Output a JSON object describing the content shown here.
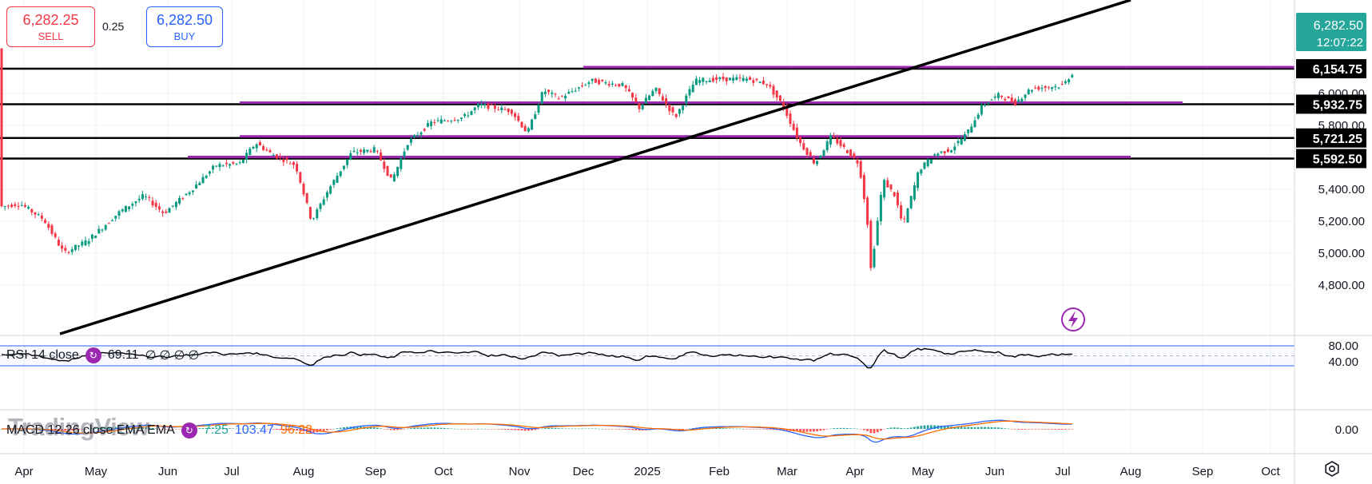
{
  "trade": {
    "sell_price": "6,282.25",
    "sell_label": "SELL",
    "spread": "0.25",
    "buy_price": "6,282.50",
    "buy_label": "BUY"
  },
  "price_axis": {
    "ticks": [
      "6,000.00",
      "5,800.00",
      "5,400.00",
      "5,200.00",
      "5,000.00",
      "4,800.00"
    ],
    "current_price": "6,282.50",
    "countdown": "12:07:22",
    "level_tags": [
      "6,154.75",
      "5,932.75",
      "5,721.25",
      "5,592.50"
    ],
    "colors": {
      "up": "#089981",
      "down": "#f23645",
      "last": "#26a69a",
      "tag_bg": "#000000"
    }
  },
  "time_axis": {
    "labels": [
      "Apr",
      "May",
      "Jun",
      "Jul",
      "Aug",
      "Sep",
      "Oct",
      "Nov",
      "Dec",
      "2025",
      "Feb",
      "Mar",
      "Apr",
      "May",
      "Jun",
      "Jul",
      "Aug",
      "Sep",
      "Oct"
    ]
  },
  "drawings": {
    "black_levels": [
      6154.75,
      5932.75,
      5721.25,
      5592.5
    ],
    "purple_color": "#9c27b0",
    "trendline": {
      "label": ""
    }
  },
  "rsi": {
    "label": "RSI 14 close",
    "value": "69.11",
    "extras": [
      "∅",
      "∅",
      "∅",
      "∅"
    ],
    "ticks": [
      "80.00",
      "40.00"
    ],
    "line_color": "#000000",
    "band_color": "#2962ff"
  },
  "macd": {
    "label": "MACD 12 26 close EMA EMA",
    "hist": "7.25",
    "macd": "103.47",
    "signal": "96.22",
    "ticks": [
      "0.00"
    ],
    "macd_color": "#2962ff",
    "signal_color": "#ff6d00"
  },
  "branding": {
    "watermark": "TradingView"
  },
  "icons": {
    "alert": "lightning-icon",
    "settings": "gear-icon"
  }
}
